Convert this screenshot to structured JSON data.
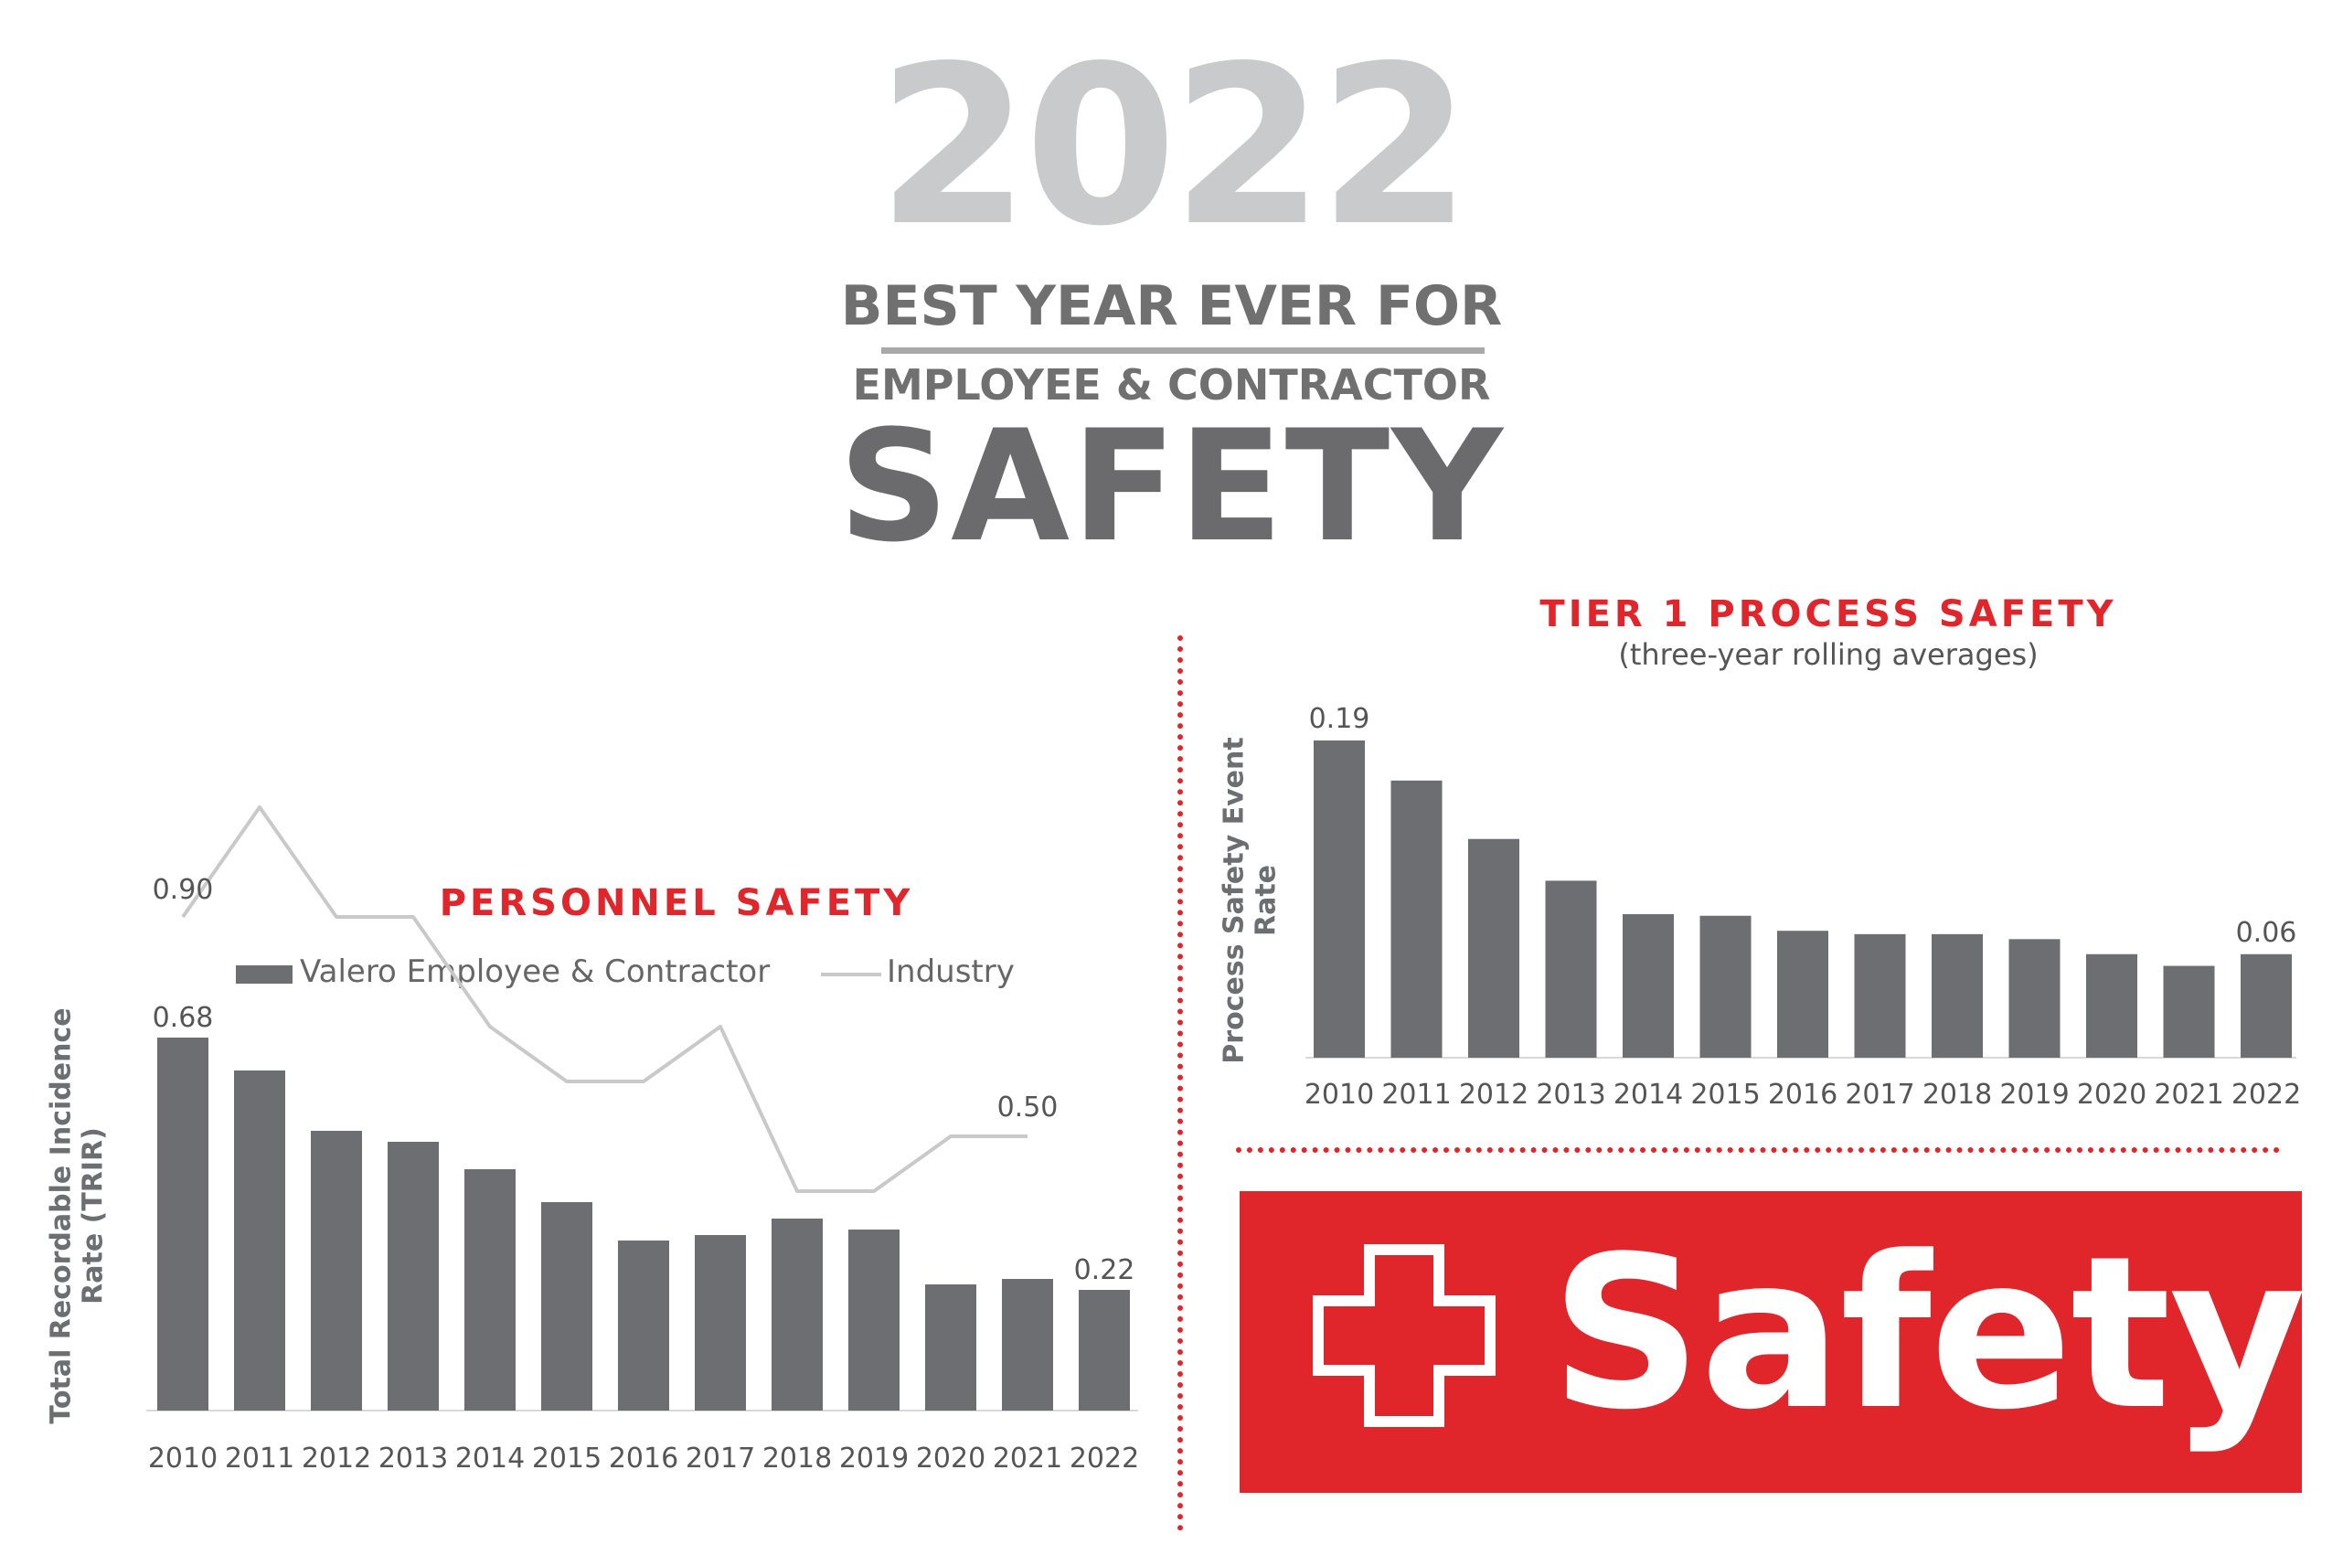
{
  "header": {
    "year": "2022",
    "line1": "BEST YEAR EVER FOR",
    "line2": "EMPLOYEE & CONTRACTOR",
    "line3": "SAFETY"
  },
  "banner": {
    "text": "Safety",
    "icon": "red-cross-icon",
    "color": "#e0262b"
  },
  "colors": {
    "bar": "#6d6e71",
    "industry_line": "#c9c9c9",
    "accent": "#e0262b"
  },
  "chart_data": [
    {
      "type": "bar",
      "title": "PERSONNEL SAFETY",
      "ylabel": "Total Recordable Incidence Rate (TRIR)",
      "ylabel_lines": [
        "Total Recordable Incidence",
        "Rate (TRIR)"
      ],
      "xlabel": "",
      "categories": [
        "2010",
        "2011",
        "2012",
        "2013",
        "2014",
        "2015",
        "2016",
        "2017",
        "2018",
        "2019",
        "2020",
        "2021",
        "2022"
      ],
      "series": [
        {
          "name": "Valero Employee & Contractor",
          "type": "bar",
          "values": [
            0.68,
            0.62,
            0.51,
            0.49,
            0.44,
            0.38,
            0.31,
            0.32,
            0.35,
            0.33,
            0.23,
            0.24,
            0.22
          ]
        },
        {
          "name": "Industry",
          "type": "line",
          "values": [
            0.9,
            1.1,
            0.9,
            0.9,
            0.7,
            0.6,
            0.6,
            0.7,
            0.4,
            0.4,
            0.5,
            0.5,
            null
          ]
        }
      ],
      "data_labels": [
        {
          "series": "Industry",
          "category": "2010",
          "value": 0.9,
          "text": "0.90"
        },
        {
          "series": "Valero Employee & Contractor",
          "category": "2010",
          "value": 0.68,
          "text": "0.68"
        },
        {
          "series": "Industry",
          "category": "2021",
          "value": 0.5,
          "text": "0.50"
        },
        {
          "series": "Valero Employee & Contractor",
          "category": "2022",
          "value": 0.22,
          "text": "0.22"
        }
      ],
      "ylim": [
        0,
        1.2
      ],
      "grid": false,
      "legend": "top"
    },
    {
      "type": "bar",
      "title": "TIER 1 PROCESS SAFETY",
      "subtitle": "(three-year rolling averages)",
      "ylabel": "Process Safety Event Rate",
      "ylabel_lines": [
        "Process Safety Event",
        "Rate"
      ],
      "xlabel": "",
      "categories": [
        "2010",
        "2011",
        "2012",
        "2013",
        "2014",
        "2015",
        "2016",
        "2017",
        "2018",
        "2019",
        "2020",
        "2021",
        "2022"
      ],
      "series": [
        {
          "values": [
            0.19,
            0.166,
            0.131,
            0.106,
            0.086,
            0.085,
            0.076,
            0.074,
            0.074,
            0.071,
            0.062,
            0.055,
            0.062
          ]
        }
      ],
      "data_labels": [
        {
          "category": "2010",
          "value": 0.19,
          "text": "0.19"
        },
        {
          "category": "2022",
          "value": 0.062,
          "text": "0.06"
        }
      ],
      "ylim": [
        0,
        0.19
      ],
      "grid": false,
      "legend": "none"
    }
  ]
}
